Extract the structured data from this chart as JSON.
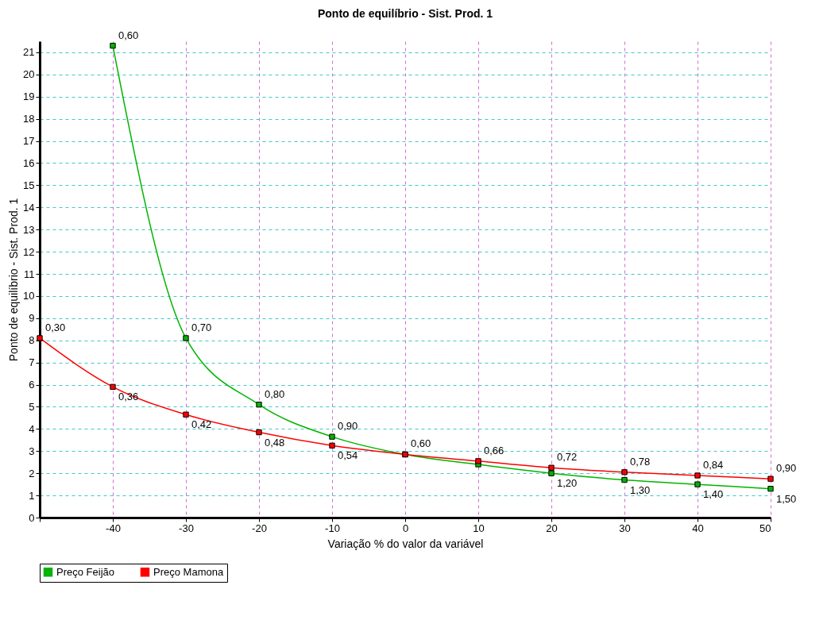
{
  "chart_data": {
    "type": "line",
    "title": "Ponto de equilíbrio - Sist. Prod. 1",
    "xlabel": "Variação % do valor da variável",
    "ylabel": "Ponto de equilíbrio - Sist. Prod. 1",
    "x": [
      -50,
      -40,
      -30,
      -20,
      -10,
      0,
      10,
      20,
      30,
      40,
      50
    ],
    "series": [
      {
        "name": "Preço Feijão",
        "color": "#00b400",
        "values": [
          null,
          21.3,
          8.1,
          5.1,
          3.65,
          2.85,
          2.4,
          2.0,
          1.7,
          1.5,
          1.3
        ]
      },
      {
        "name": "Preço Mamona",
        "color": "#ff0000",
        "values": [
          8.1,
          5.9,
          4.65,
          3.85,
          3.25,
          2.85,
          2.55,
          2.25,
          2.05,
          1.9,
          1.75
        ]
      }
    ],
    "annotations": [
      {
        "text": "0,60",
        "x": -40,
        "y": 21.3
      },
      {
        "text": "0,70",
        "x": -30,
        "y": 8.1
      },
      {
        "text": "0,80",
        "x": -20,
        "y": 5.1
      },
      {
        "text": "0,90",
        "x": -10,
        "y": 3.65
      },
      {
        "text": "1,20",
        "x": 20,
        "y": 2.0
      },
      {
        "text": "1,30",
        "x": 30,
        "y": 1.7
      },
      {
        "text": "1,40",
        "x": 40,
        "y": 1.5
      },
      {
        "text": "1,50",
        "x": 50,
        "y": 1.3
      },
      {
        "text": "0,30",
        "x": -50,
        "y": 8.1
      },
      {
        "text": "0,36",
        "x": -40,
        "y": 5.9
      },
      {
        "text": "0,42",
        "x": -30,
        "y": 4.65
      },
      {
        "text": "0,48",
        "x": -20,
        "y": 3.85
      },
      {
        "text": "0,54",
        "x": -10,
        "y": 3.25
      },
      {
        "text": "0,60",
        "x": 0,
        "y": 2.85
      },
      {
        "text": "0,66",
        "x": 10,
        "y": 2.55
      },
      {
        "text": "0,72",
        "x": 20,
        "y": 2.25
      },
      {
        "text": "0,78",
        "x": 30,
        "y": 2.05
      },
      {
        "text": "0,84",
        "x": 40,
        "y": 1.9
      },
      {
        "text": "0,90",
        "x": 50,
        "y": 1.75
      }
    ],
    "xlim": [
      -50,
      50
    ],
    "xticks": [
      {
        "value": -50,
        "label": null
      },
      -40,
      -30,
      -20,
      -10,
      0,
      10,
      20,
      30,
      40,
      50
    ],
    "ylim": [
      0,
      21.5
    ],
    "yticks": [
      0,
      1,
      2,
      3,
      4,
      5,
      6,
      7,
      8,
      9,
      10,
      11,
      12,
      13,
      14,
      15,
      16,
      17,
      18,
      19,
      20,
      21
    ],
    "grid": true,
    "legend": "bottom",
    "marker": "square",
    "line_style": "solid"
  }
}
